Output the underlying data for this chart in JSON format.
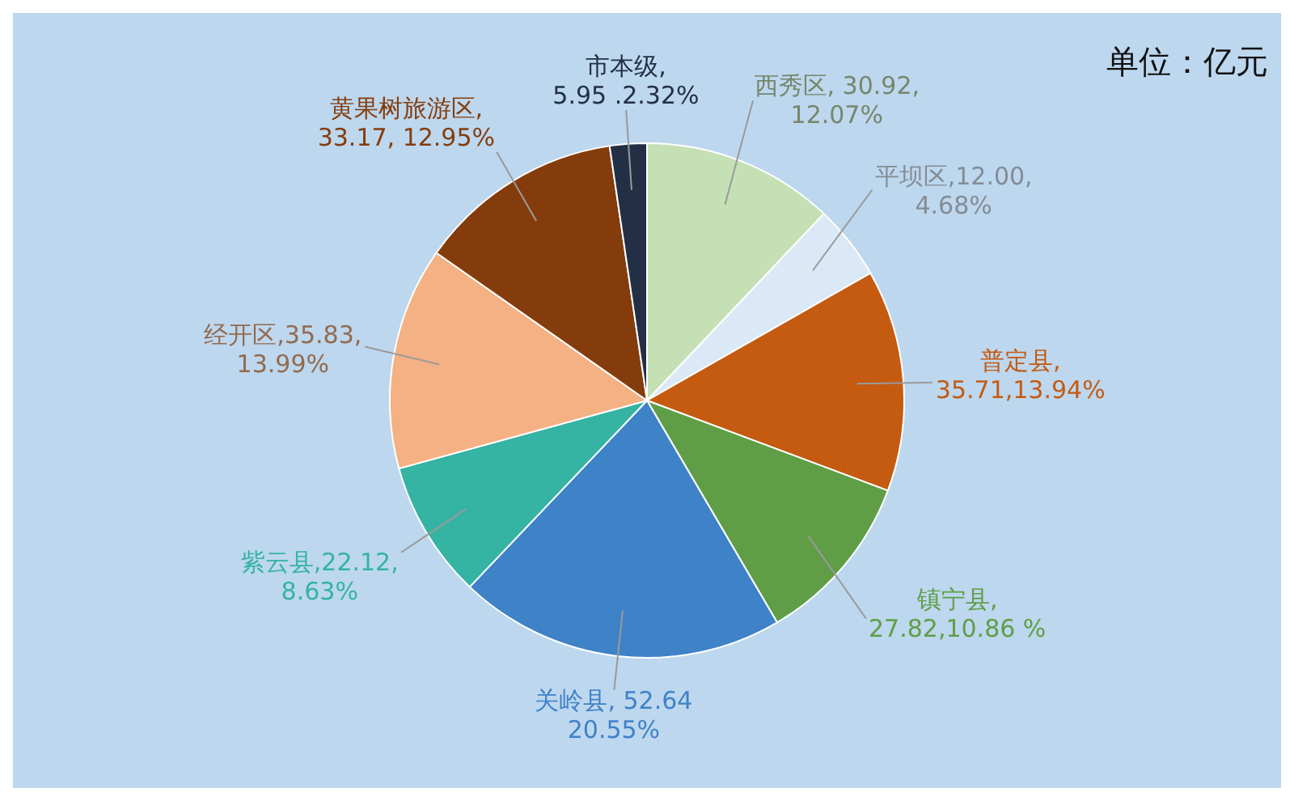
{
  "chart_data": {
    "type": "pie",
    "categories": [
      "西秀区",
      "平坝区",
      "普定县",
      "镇宁县",
      "关岭县",
      "紫云县",
      "经开区",
      "黄果树旅游区",
      "市本级"
    ],
    "values": [
      30.92,
      12.0,
      35.71,
      27.82,
      52.64,
      22.12,
      35.83,
      33.17,
      5.95
    ],
    "colors": [
      "#c5e0b4",
      "#dbe9f6",
      "#c55a11",
      "#5f9e46",
      "#3e82c8",
      "#35b3a3",
      "#f4b183",
      "#843c0c",
      "#222f45"
    ],
    "value_labels": [
      ", 30.92,\n12.07%",
      ",12.00,\n4.68%",
      ",\n35.71,13.94%",
      ",\n27.82,10.86 %",
      ", 52.64\n20.55%",
      ",22.12,\n8.63%",
      ",35.83,\n13.99%",
      ",\n33.17, 12.95%",
      ",\n5.95 .2.32%"
    ],
    "annotations": [
      "单位：亿元"
    ]
  }
}
